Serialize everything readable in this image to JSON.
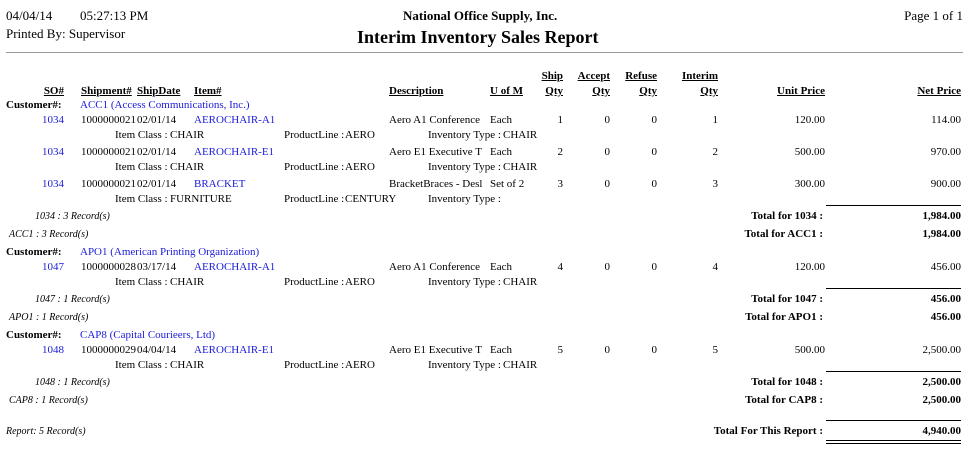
{
  "header": {
    "date": "04/04/14",
    "time": "05:27:13 PM",
    "company": "National Office Supply, Inc.",
    "page": "Page 1 of  1",
    "printed_by": "Printed By: Supervisor",
    "report_title": "Interim Inventory Sales Report"
  },
  "columns": {
    "so": "SO#",
    "shipment": "Shipment#",
    "ship_date": "ShipDate",
    "item": "Item#",
    "description": "Description",
    "uom": "U of M",
    "ship_qty": [
      "Ship",
      "Qty"
    ],
    "accept_qty": [
      "Accept",
      "Qty"
    ],
    "refuse_qty": [
      "Refuse",
      "Qty"
    ],
    "interim_qty": [
      "Interim",
      "Qty"
    ],
    "unit_price": "Unit Price",
    "net_price": "Net Price"
  },
  "labels": {
    "customer": "Customer#:",
    "item_class": "Item Class : ",
    "product_line": "ProductLine : ",
    "inventory_type": "Inventory Type : "
  },
  "colors": {
    "link": "#1a1adb"
  },
  "customers": [
    {
      "customer": "ACC1 (Access Communications, Inc.)",
      "orders": [
        {
          "lines": [
            {
              "so": "1034",
              "shipment": "1000000021",
              "date": "02/01/14",
              "item": "AEROCHAIR-A1",
              "description": "Aero A1 Conference",
              "uom": "Each",
              "ship": "1",
              "accept": "0",
              "refuse": "0",
              "interim": "1",
              "unit_price": "120.00",
              "net_price": "114.00",
              "item_class": "CHAIR",
              "product_line": "AERO",
              "inventory_type": "CHAIR"
            },
            {
              "so": "1034",
              "shipment": "1000000021",
              "date": "02/01/14",
              "item": "AEROCHAIR-E1",
              "description": "Aero E1 Executive T",
              "uom": "Each",
              "ship": "2",
              "accept": "0",
              "refuse": "0",
              "interim": "2",
              "unit_price": "500.00",
              "net_price": "970.00",
              "item_class": "CHAIR",
              "product_line": "AERO",
              "inventory_type": "CHAIR"
            },
            {
              "so": "1034",
              "shipment": "1000000021",
              "date": "02/01/14",
              "item": "BRACKET",
              "description": "BracketBraces - Desl",
              "uom": "Set of 2",
              "ship": "3",
              "accept": "0",
              "refuse": "0",
              "interim": "3",
              "unit_price": "300.00",
              "net_price": "900.00",
              "item_class": "FURNITURE",
              "product_line": "CENTURY",
              "inventory_type": ""
            }
          ],
          "records": "1034 : 3 Record(s)",
          "total_label": "Total for    1034 :",
          "total": "1,984.00"
        }
      ],
      "records": "ACC1 : 3 Record(s)",
      "total_label": "Total for ACC1 :",
      "total": "1,984.00"
    },
    {
      "customer": "APO1 (American Printing Organization)",
      "orders": [
        {
          "lines": [
            {
              "so": "1047",
              "shipment": "1000000028",
              "date": "03/17/14",
              "item": "AEROCHAIR-A1",
              "description": "Aero A1 Conference",
              "uom": "Each",
              "ship": "4",
              "accept": "0",
              "refuse": "0",
              "interim": "4",
              "unit_price": "120.00",
              "net_price": "456.00",
              "item_class": "CHAIR",
              "product_line": "AERO",
              "inventory_type": "CHAIR"
            }
          ],
          "records": "1047 : 1 Record(s)",
          "total_label": "Total for    1047 :",
          "total": "456.00"
        }
      ],
      "records": "APO1 : 1 Record(s)",
      "total_label": "Total for APO1 :",
      "total": "456.00"
    },
    {
      "customer": "CAP8 (Capital Courieers, Ltd)",
      "orders": [
        {
          "lines": [
            {
              "so": "1048",
              "shipment": "1000000029",
              "date": "04/04/14",
              "item": "AEROCHAIR-E1",
              "description": "Aero E1 Executive T",
              "uom": "Each",
              "ship": "5",
              "accept": "0",
              "refuse": "0",
              "interim": "5",
              "unit_price": "500.00",
              "net_price": "2,500.00",
              "item_class": "CHAIR",
              "product_line": "AERO",
              "inventory_type": "CHAIR"
            }
          ],
          "records": "1048 : 1 Record(s)",
          "total_label": "Total for    1048 :",
          "total": "2,500.00"
        }
      ],
      "records": "CAP8 : 1 Record(s)",
      "total_label": "Total for CAP8 :",
      "total": "2,500.00"
    }
  ],
  "report": {
    "records": "Report: 5 Record(s)",
    "total_label": "Total For This Report :",
    "total": "4,940.00"
  }
}
